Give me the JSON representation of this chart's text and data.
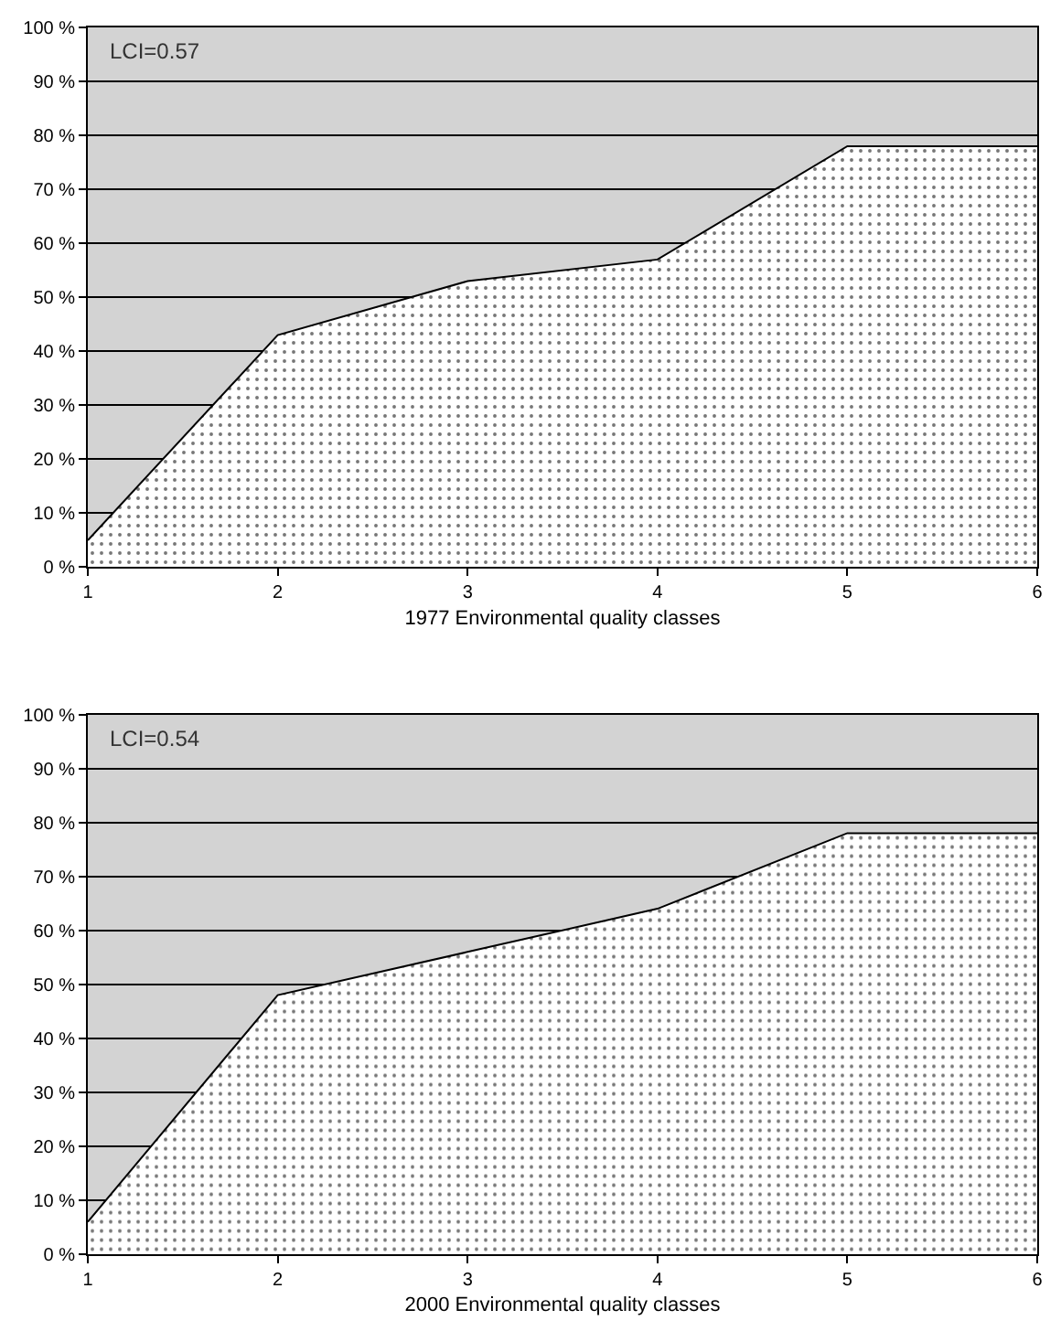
{
  "chart_data": [
    {
      "type": "area",
      "x": [
        1,
        2,
        3,
        4,
        5,
        6
      ],
      "values": [
        5,
        43,
        53,
        57,
        78,
        78
      ],
      "color": "#ffffff",
      "xlabel": "1977 Environmental quality classes",
      "annotations": [
        "LCI=0.57"
      ],
      "xlim": [
        1,
        6
      ],
      "xticks": [
        1,
        2,
        3,
        4,
        5,
        6
      ],
      "ylim": [
        0,
        100
      ],
      "yticks": [
        {
          "value": 0,
          "label": "0 %"
        },
        {
          "value": 10,
          "label": "10 %"
        },
        {
          "value": 20,
          "label": "20 %"
        },
        {
          "value": 30,
          "label": "30 %"
        },
        {
          "value": 40,
          "label": "40 %"
        },
        {
          "value": 50,
          "label": "50 %"
        },
        {
          "value": 60,
          "label": "60 %"
        },
        {
          "value": 70,
          "label": "70 %"
        },
        {
          "value": 80,
          "label": "80 %"
        },
        {
          "value": 90,
          "label": "90 %"
        },
        {
          "value": 100,
          "label": "100 %"
        }
      ],
      "grid": "y"
    },
    {
      "type": "area",
      "x": [
        1,
        2,
        3,
        4,
        5,
        6
      ],
      "values": [
        6,
        48,
        56,
        64,
        78,
        78
      ],
      "color": "#ffffff",
      "xlabel": "2000 Environmental quality classes",
      "annotations": [
        "LCI=0.54"
      ],
      "xlim": [
        1,
        6
      ],
      "xticks": [
        1,
        2,
        3,
        4,
        5,
        6
      ],
      "ylim": [
        0,
        100
      ],
      "yticks": [
        {
          "value": 0,
          "label": "0 %"
        },
        {
          "value": 10,
          "label": "10 %"
        },
        {
          "value": 20,
          "label": "20 %"
        },
        {
          "value": 30,
          "label": "30 %"
        },
        {
          "value": 40,
          "label": "40 %"
        },
        {
          "value": 50,
          "label": "50 %"
        },
        {
          "value": 60,
          "label": "60 %"
        },
        {
          "value": 70,
          "label": "70 %"
        },
        {
          "value": 80,
          "label": "80 %"
        },
        {
          "value": 90,
          "label": "90 %"
        },
        {
          "value": 100,
          "label": "100 %"
        }
      ],
      "grid": "y"
    }
  ]
}
